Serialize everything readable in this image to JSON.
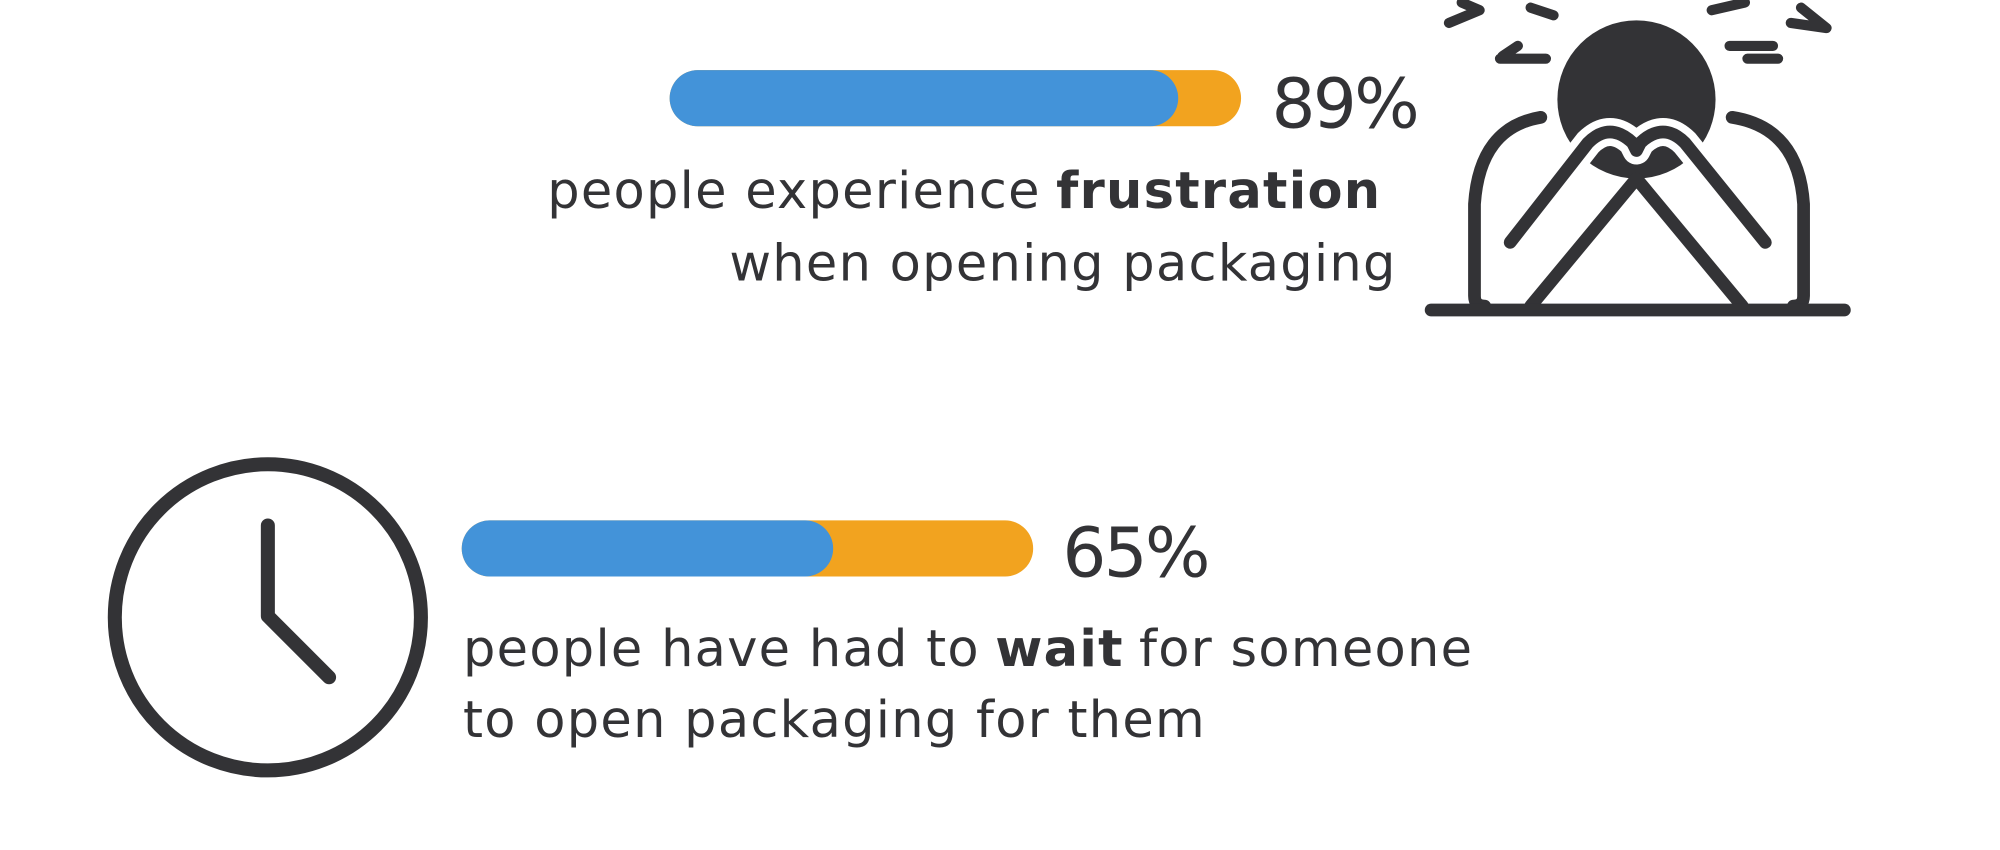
{
  "scale": [
    0,
    100
  ],
  "items": [
    {
      "value": {
        "value": 89,
        "label": "89%"
      },
      "text_before": "people experience",
      "emphasis": "frustration",
      "text_after": "",
      "line2": "when opening packaging"
    },
    {
      "value": {
        "value": 65,
        "label": "65%"
      },
      "text_before": "people have had to",
      "emphasis": "wait",
      "text_after": "for someone",
      "line2": "to open packaging for them"
    }
  ]
}
